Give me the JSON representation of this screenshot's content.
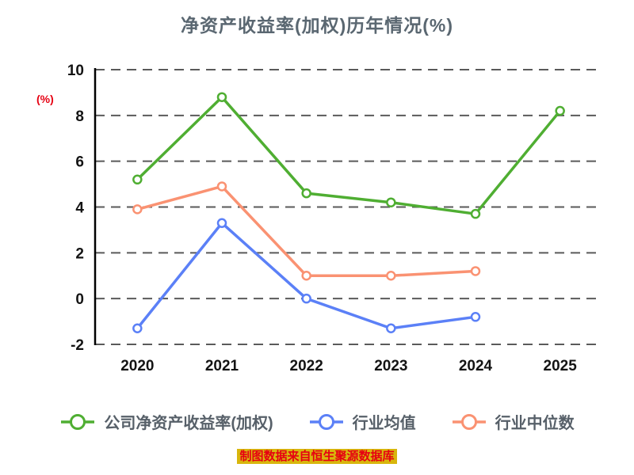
{
  "chart_data": {
    "type": "line",
    "title": "净资产收益率(加权)历年情况(%)",
    "ylabel": "(%)",
    "categories": [
      "2020",
      "2021",
      "2022",
      "2023",
      "2024",
      "2025"
    ],
    "series": [
      {
        "name": "公司净资产收益率(加权)",
        "color": "#4fae32",
        "values": [
          5.2,
          8.8,
          4.6,
          4.2,
          3.7,
          8.2
        ]
      },
      {
        "name": "行业均值",
        "color": "#5b80f7",
        "values": [
          -1.3,
          3.3,
          0.0,
          -1.3,
          -0.8,
          null
        ]
      },
      {
        "name": "行业中位数",
        "color": "#fa9272",
        "values": [
          3.9,
          4.9,
          1.0,
          1.0,
          1.2,
          null
        ]
      }
    ],
    "ylim": [
      -2,
      10
    ],
    "yticks": [
      10,
      8,
      6,
      4,
      2,
      0,
      -2
    ],
    "grid": "dashed-horizontal",
    "legend_position": "bottom"
  },
  "footer": {
    "text": "制图数据来自恒生聚源数据库",
    "text_color": "#e60012",
    "highlight_color": "#d8b60c"
  }
}
